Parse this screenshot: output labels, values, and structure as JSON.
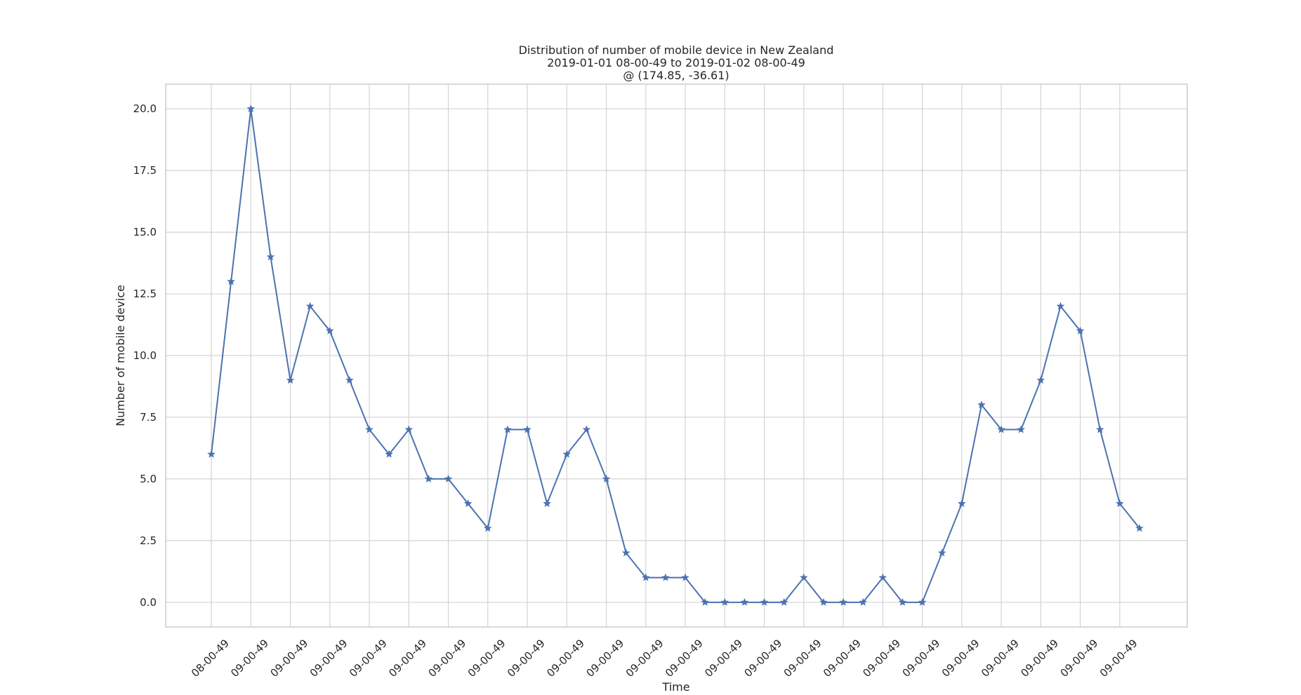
{
  "chart_data": {
    "type": "line",
    "title": [
      "Distribution of number of mobile device in New Zealand",
      "2019-01-01 08-00-49 to 2019-01-02 08-00-49",
      "@ (174.85, -36.61)"
    ],
    "xlabel": "Time",
    "ylabel": "Number of mobile device",
    "ylim": [
      -1.0,
      21.0
    ],
    "yticks": [
      0.0,
      2.5,
      5.0,
      7.5,
      10.0,
      12.5,
      15.0,
      17.5,
      20.0
    ],
    "ytick_labels": [
      "0.0",
      "2.5",
      "5.0",
      "7.5",
      "10.0",
      "12.5",
      "15.0",
      "17.5",
      "20.0"
    ],
    "xtick_labels": [
      "08-00-49",
      "09-00-49",
      "09-00-49",
      "09-00-49",
      "09-00-49",
      "09-00-49",
      "09-00-49",
      "09-00-49",
      "09-00-49",
      "09-00-49",
      "09-00-49",
      "09-00-49",
      "09-00-49",
      "09-00-49",
      "09-00-49",
      "09-00-49",
      "09-00-49",
      "09-00-49",
      "09-00-49",
      "09-00-49",
      "09-00-49",
      "09-00-49",
      "09-00-49",
      "09-00-49"
    ],
    "values": [
      6,
      13,
      20,
      14,
      9,
      12,
      11,
      9,
      7,
      6,
      7,
      5,
      5,
      4,
      3,
      7,
      7,
      4,
      6,
      7,
      5,
      2,
      1,
      1,
      1,
      0,
      0,
      0,
      0,
      0,
      1,
      0,
      0,
      0,
      1,
      0,
      0,
      2,
      4,
      8,
      7,
      7,
      9,
      12,
      11,
      7,
      4,
      3
    ],
    "marker": "star",
    "color": "#4c72b0",
    "grid": true,
    "legend": "none"
  }
}
